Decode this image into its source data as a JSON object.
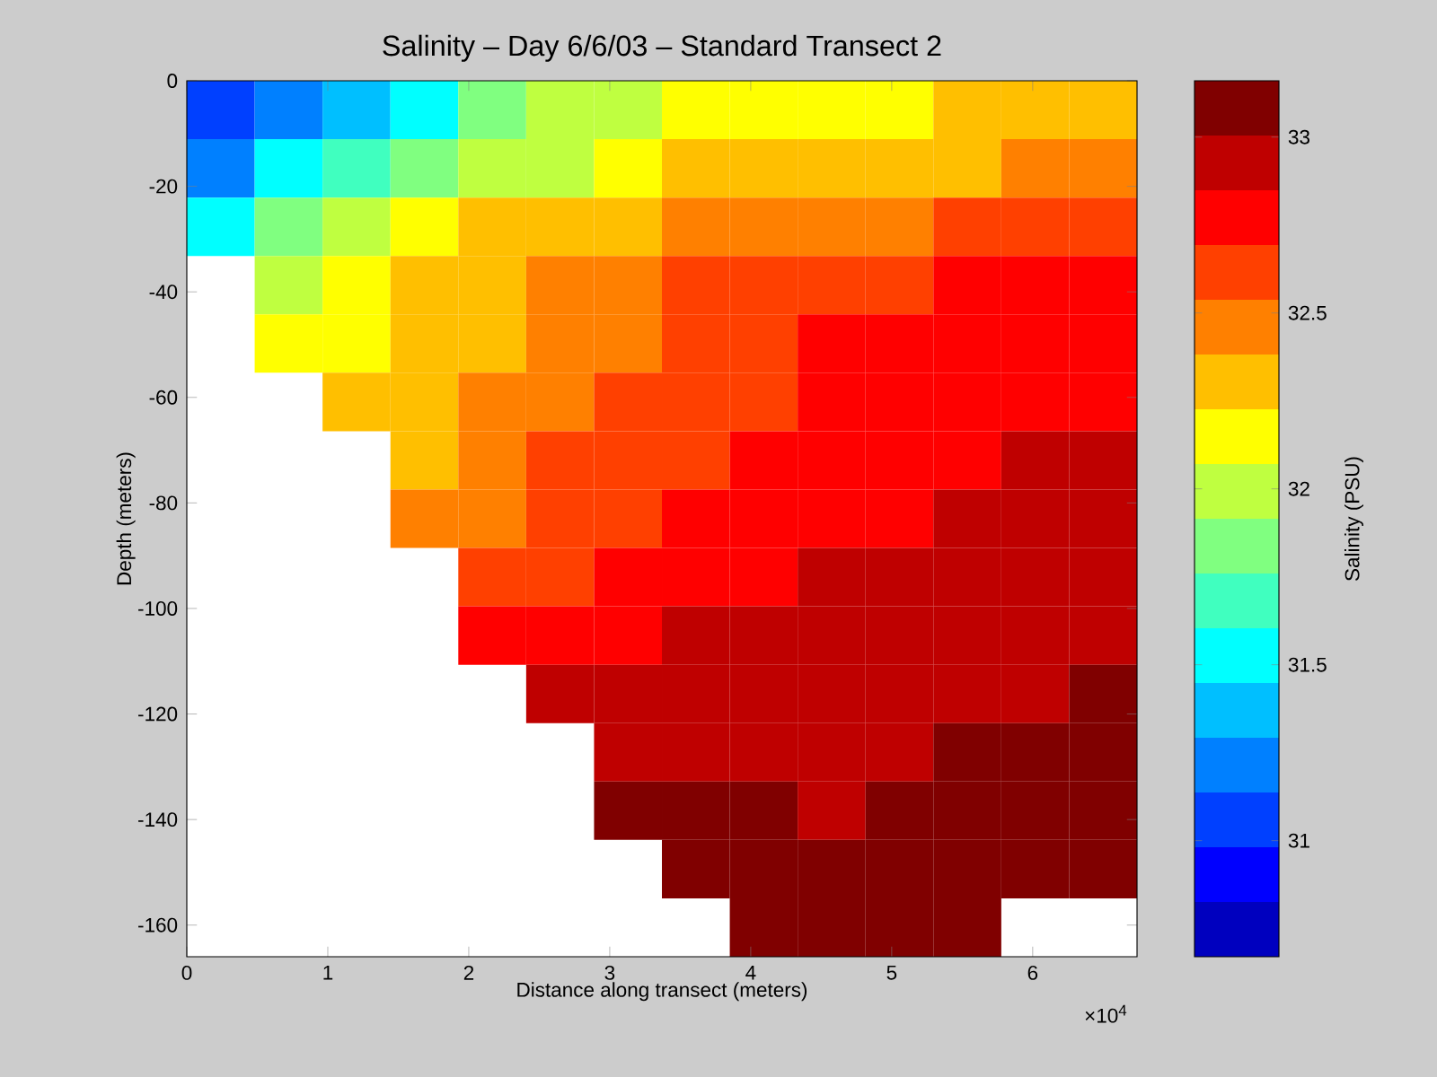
{
  "chart_data": {
    "type": "heatmap",
    "title": "Salinity – Day 6/6/03 – Standard Transect 2",
    "xlabel": "Distance along transect (meters)",
    "ylabel": "Depth (meters)",
    "clabel": "Salinity (PSU)",
    "annotations": [
      "×10$^{4}$"
    ],
    "xlim": [
      0,
      6.74
    ],
    "ylim": [
      -166,
      0
    ],
    "xticks": [
      {
        "value": 0,
        "label": "0"
      },
      {
        "value": 1,
        "label": "1"
      },
      {
        "value": 2,
        "label": "2"
      },
      {
        "value": 3,
        "label": "3"
      },
      {
        "value": 4,
        "label": "4"
      },
      {
        "value": 5,
        "label": "5"
      },
      {
        "value": 6,
        "label": "6"
      }
    ],
    "yticks": [
      {
        "value": 0,
        "label": "0"
      },
      {
        "value": -20,
        "label": "-20"
      },
      {
        "value": -40,
        "label": "-40"
      },
      {
        "value": -60,
        "label": "-60"
      },
      {
        "value": -80,
        "label": "-80"
      },
      {
        "value": -100,
        "label": "-100"
      },
      {
        "value": -120,
        "label": "-120"
      },
      {
        "value": -140,
        "label": "-140"
      },
      {
        "value": -160,
        "label": "-160"
      }
    ],
    "clim": [
      30.67,
      33.16
    ],
    "cticks": [
      {
        "value": 31,
        "label": "31"
      },
      {
        "value": 31.5,
        "label": "31.5"
      },
      {
        "value": 32,
        "label": "32"
      },
      {
        "value": 32.5,
        "label": "32.5"
      },
      {
        "value": 33,
        "label": "33"
      }
    ],
    "cells": [
      [
        31.06,
        31.21,
        31.37,
        31.53,
        31.84,
        31.99,
        31.99,
        32.15,
        32.15,
        32.15,
        32.15,
        32.3,
        32.3,
        32.3
      ],
      [
        31.21,
        31.53,
        31.68,
        31.84,
        31.99,
        31.99,
        32.15,
        32.3,
        32.3,
        32.3,
        32.3,
        32.3,
        32.46,
        32.46
      ],
      [
        31.53,
        31.84,
        31.99,
        32.15,
        32.3,
        32.3,
        32.3,
        32.46,
        32.46,
        32.46,
        32.46,
        32.61,
        32.61,
        32.61
      ],
      [
        null,
        31.99,
        32.15,
        32.3,
        32.3,
        32.46,
        32.46,
        32.61,
        32.61,
        32.61,
        32.61,
        32.77,
        32.77,
        32.77
      ],
      [
        null,
        32.15,
        32.15,
        32.3,
        32.3,
        32.46,
        32.46,
        32.61,
        32.61,
        32.77,
        32.77,
        32.77,
        32.77,
        32.77
      ],
      [
        null,
        null,
        32.3,
        32.3,
        32.46,
        32.46,
        32.61,
        32.61,
        32.61,
        32.77,
        32.77,
        32.77,
        32.77,
        32.77
      ],
      [
        null,
        null,
        null,
        32.3,
        32.46,
        32.61,
        32.61,
        32.61,
        32.77,
        32.77,
        32.77,
        32.77,
        32.92,
        32.92
      ],
      [
        null,
        null,
        null,
        32.46,
        32.46,
        32.61,
        32.61,
        32.77,
        32.77,
        32.77,
        32.77,
        32.92,
        32.92,
        32.92
      ],
      [
        null,
        null,
        null,
        null,
        32.61,
        32.61,
        32.77,
        32.77,
        32.77,
        32.92,
        32.92,
        32.92,
        32.92,
        32.92
      ],
      [
        null,
        null,
        null,
        null,
        32.77,
        32.77,
        32.77,
        32.92,
        32.92,
        32.92,
        32.92,
        32.92,
        32.92,
        32.92
      ],
      [
        null,
        null,
        null,
        null,
        null,
        32.92,
        32.92,
        32.92,
        32.92,
        32.92,
        32.92,
        32.92,
        32.92,
        33.08
      ],
      [
        null,
        null,
        null,
        null,
        null,
        null,
        32.92,
        32.92,
        32.92,
        32.92,
        32.92,
        33.08,
        33.08,
        33.08
      ],
      [
        null,
        null,
        null,
        null,
        null,
        null,
        33.08,
        33.08,
        33.08,
        32.92,
        33.08,
        33.08,
        33.08,
        33.08
      ],
      [
        null,
        null,
        null,
        null,
        null,
        null,
        null,
        33.08,
        33.08,
        33.08,
        33.08,
        33.08,
        33.08,
        33.08
      ],
      [
        null,
        null,
        null,
        null,
        null,
        null,
        null,
        null,
        33.08,
        33.08,
        33.08,
        33.08,
        null,
        null
      ]
    ]
  }
}
